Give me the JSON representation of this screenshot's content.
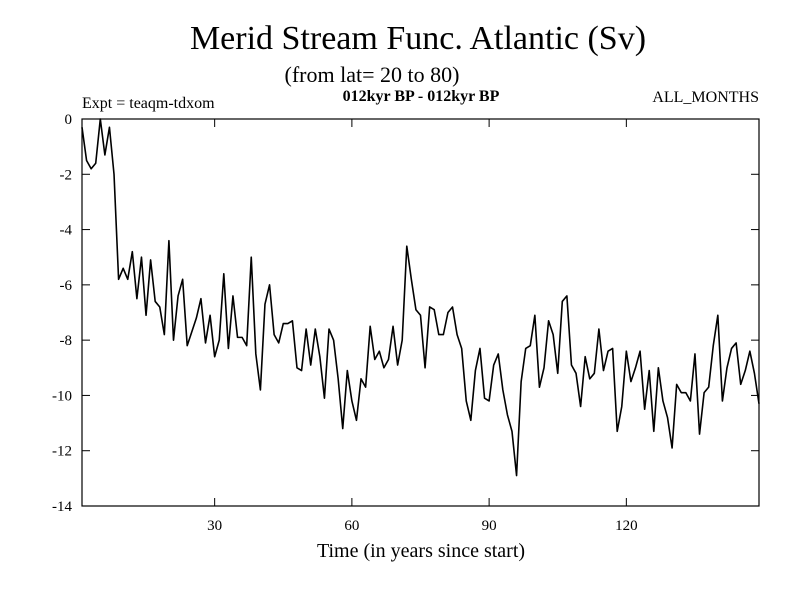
{
  "chart_data": {
    "type": "line",
    "title": "Merid Stream Func. Atlantic (Sv)",
    "subtitle": "(from lat= 20 to 80)",
    "experiment": "Expt = teaqm-tdxom",
    "period": "012kyr BP - 012kyr BP",
    "season": "ALL_MONTHS",
    "xlabel": "Time (in years since start)",
    "ylabel": "",
    "xlim": [
      1,
      149
    ],
    "ylim": [
      -14,
      0
    ],
    "xticks": [
      30,
      60,
      90,
      120
    ],
    "yticks": [
      0,
      -2,
      -4,
      -6,
      -8,
      -10,
      -12,
      -14
    ],
    "x_start": 1,
    "x_step": 1,
    "series": [
      {
        "name": "Merid Stream Func. Atlantic",
        "values": [
          -0.3,
          -1.5,
          -1.8,
          -1.6,
          0.0,
          -1.3,
          -0.3,
          -2.0,
          -5.8,
          -5.4,
          -5.8,
          -4.8,
          -6.5,
          -5.0,
          -7.1,
          -5.1,
          -6.6,
          -6.8,
          -7.8,
          -4.4,
          -8.0,
          -6.4,
          -5.8,
          -8.2,
          -7.7,
          -7.2,
          -6.5,
          -8.1,
          -7.1,
          -8.6,
          -8.0,
          -5.6,
          -8.3,
          -6.4,
          -7.9,
          -7.9,
          -8.2,
          -5.0,
          -8.5,
          -9.8,
          -6.7,
          -6.0,
          -7.8,
          -8.1,
          -7.4,
          -7.4,
          -7.3,
          -9.0,
          -9.1,
          -7.6,
          -8.9,
          -7.6,
          -8.6,
          -10.1,
          -7.6,
          -8.0,
          -9.4,
          -11.2,
          -9.1,
          -10.2,
          -10.9,
          -9.4,
          -9.7,
          -7.5,
          -8.7,
          -8.4,
          -9.0,
          -8.7,
          -7.5,
          -8.9,
          -8.0,
          -4.6,
          -5.8,
          -6.9,
          -7.1,
          -9.0,
          -6.8,
          -6.9,
          -7.8,
          -7.8,
          -7.0,
          -6.8,
          -7.8,
          -8.3,
          -10.2,
          -10.9,
          -9.1,
          -8.3,
          -10.1,
          -10.2,
          -8.9,
          -8.5,
          -9.8,
          -10.7,
          -11.3,
          -12.9,
          -9.5,
          -8.3,
          -8.2,
          -7.1,
          -9.7,
          -9.0,
          -7.3,
          -7.8,
          -9.2,
          -6.6,
          -6.4,
          -8.9,
          -9.2,
          -10.4,
          -8.6,
          -9.4,
          -9.2,
          -7.6,
          -9.1,
          -8.4,
          -8.3,
          -11.3,
          -10.4,
          -8.4,
          -9.5,
          -9.0,
          -8.4,
          -10.5,
          -9.1,
          -11.3,
          -9.0,
          -10.2,
          -10.8,
          -11.9,
          -9.6,
          -9.9,
          -9.9,
          -10.2,
          -8.5,
          -11.4,
          -9.9,
          -9.7,
          -8.2,
          -7.1,
          -10.2,
          -9.0,
          -8.3,
          -8.1,
          -9.6,
          -9.1,
          -8.4,
          -9.2,
          -10.3
        ]
      }
    ]
  }
}
